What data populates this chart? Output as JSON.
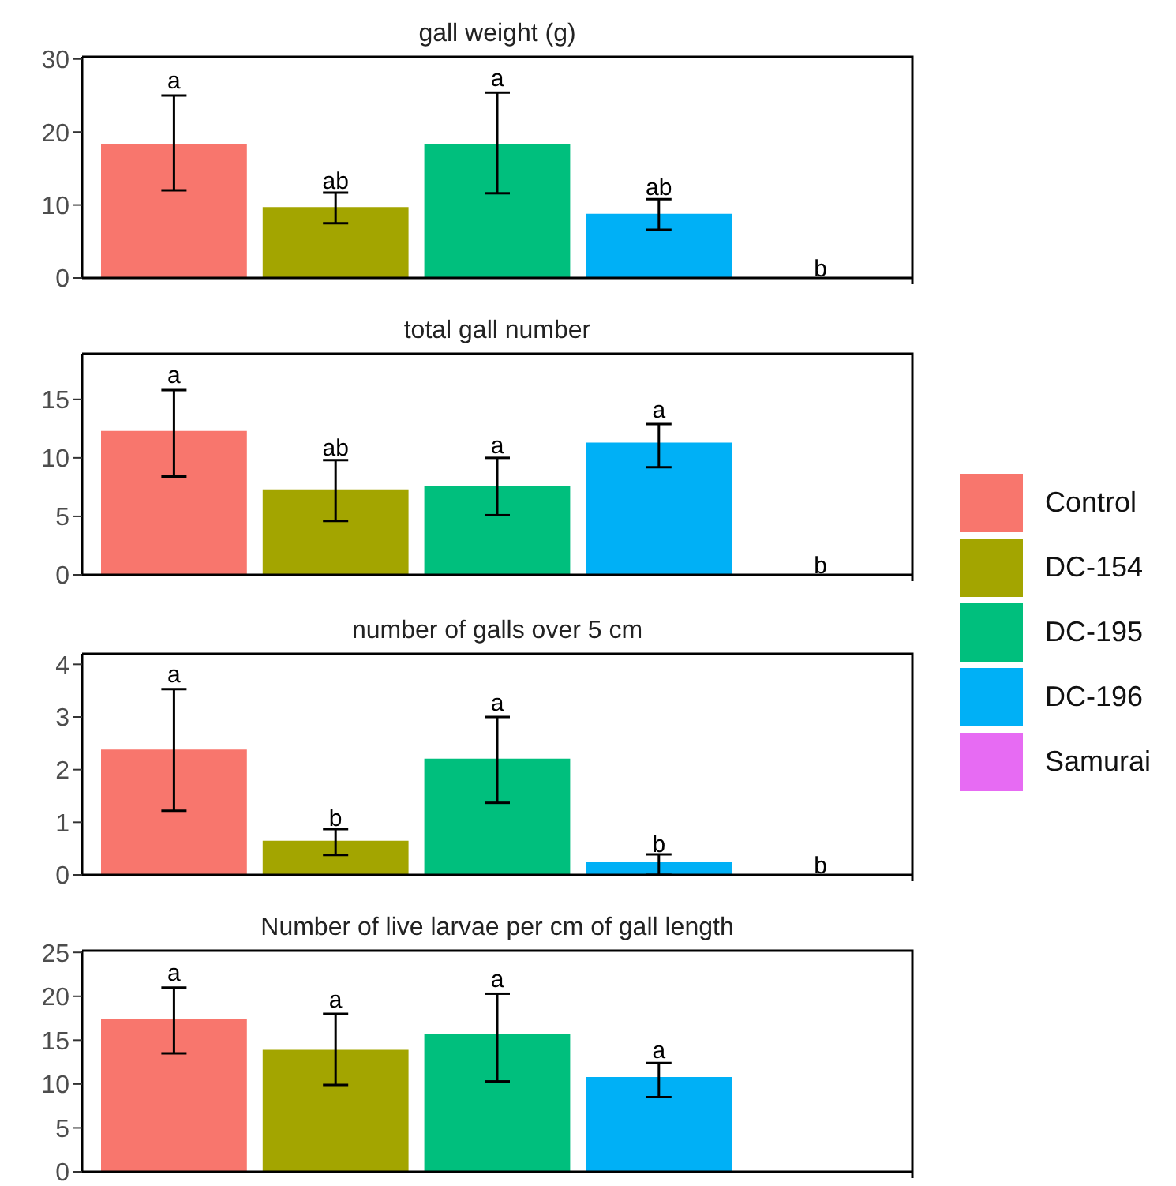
{
  "chart_data": [
    {
      "type": "bar",
      "title": "gall weight (g)",
      "categories": [
        null
      ],
      "ylim": [
        0,
        30.3
      ],
      "yticks": [
        0,
        10,
        20,
        30
      ],
      "grid": false,
      "legend": false,
      "series": [
        {
          "color": "#f8766d",
          "values": [
            18.4
          ],
          "errors": [
            [
              12.0,
              25.0
            ]
          ]
        },
        {
          "color": "#a3a500",
          "values": [
            9.7
          ],
          "errors": [
            [
              7.5,
              11.7
            ]
          ]
        },
        {
          "color": "#00bf7d",
          "values": [
            18.4
          ],
          "errors": [
            [
              11.6,
              25.4
            ]
          ]
        },
        {
          "color": "#00b0f6",
          "values": [
            8.8
          ],
          "errors": [
            [
              6.6,
              10.8
            ]
          ]
        },
        {
          "color": "#e76bf3",
          "values": [
            0
          ]
        }
      ],
      "annotations": [
        {
          "text": "a",
          "y": 25.0
        },
        {
          "text": "ab",
          "y": 11.7
        },
        {
          "text": "a",
          "y": 25.4
        },
        {
          "text": "ab",
          "y": 10.8
        },
        "b"
      ]
    },
    {
      "type": "bar",
      "title": "total gall number",
      "categories": [
        null
      ],
      "ylim": [
        0,
        18.9
      ],
      "yticks": [
        0,
        5,
        10,
        15
      ],
      "grid": false,
      "legend": "right",
      "series": [
        {
          "name": "Control",
          "color": "#f8766d",
          "values": [
            12.3
          ],
          "errors": [
            [
              8.4,
              15.8
            ]
          ]
        },
        {
          "name": "DC-154",
          "color": "#a3a500",
          "values": [
            7.3
          ],
          "errors": [
            [
              4.6,
              9.8
            ]
          ]
        },
        {
          "name": "DC-195",
          "color": "#00bf7d",
          "values": [
            7.6
          ],
          "errors": [
            [
              5.1,
              10.0
            ]
          ]
        },
        {
          "name": "DC-196",
          "color": "#00b0f6",
          "values": [
            11.3
          ],
          "errors": [
            [
              9.2,
              12.9
            ]
          ]
        },
        {
          "name": "Samurai",
          "color": "#e76bf3",
          "values": [
            0
          ]
        }
      ],
      "annotations": [
        {
          "text": "a",
          "y": 15.8
        },
        {
          "text": "ab",
          "y": 9.8
        },
        {
          "text": "a",
          "y": 10.0
        },
        {
          "text": "a",
          "y": 12.9
        },
        "b"
      ]
    },
    {
      "type": "bar",
      "title": "number of galls over 5 cm",
      "categories": [
        null
      ],
      "ylim": [
        0,
        4.2
      ],
      "yticks": [
        0,
        1,
        2,
        3,
        4
      ],
      "grid": false,
      "legend": false,
      "series": [
        {
          "color": "#f8766d",
          "values": [
            2.38
          ],
          "errors": [
            [
              1.22,
              3.53
            ]
          ]
        },
        {
          "color": "#a3a500",
          "values": [
            0.65
          ],
          "errors": [
            [
              0.38,
              0.87
            ]
          ]
        },
        {
          "color": "#00bf7d",
          "values": [
            2.21
          ],
          "errors": [
            [
              1.37,
              3.0
            ]
          ]
        },
        {
          "color": "#00b0f6",
          "values": [
            0.24
          ],
          "errors": [
            [
              0.0,
              0.39
            ]
          ]
        },
        {
          "color": "#e76bf3",
          "values": [
            0
          ]
        }
      ],
      "annotations": [
        {
          "text": "a",
          "y": 3.53
        },
        {
          "text": "b",
          "y": 0.87
        },
        {
          "text": "a",
          "y": 3.0
        },
        {
          "text": "b",
          "y": 0.39
        },
        "b"
      ]
    },
    {
      "type": "bar",
      "title": "Number of live larvae per cm of gall length",
      "categories": [
        null
      ],
      "ylim": [
        0,
        25.2
      ],
      "yticks": [
        0,
        5,
        10,
        15,
        20,
        25
      ],
      "grid": false,
      "legend": false,
      "series": [
        {
          "color": "#f8766d",
          "values": [
            17.4
          ],
          "errors": [
            [
              13.5,
              21.0
            ]
          ]
        },
        {
          "color": "#a3a500",
          "values": [
            13.9
          ],
          "errors": [
            [
              9.9,
              18.0
            ]
          ]
        },
        {
          "color": "#00bf7d",
          "values": [
            15.7
          ],
          "errors": [
            [
              10.3,
              20.3
            ]
          ]
        },
        {
          "color": "#00b0f6",
          "values": [
            10.8
          ],
          "errors": [
            [
              8.5,
              12.4
            ]
          ]
        },
        {
          "color": "#e76bf3",
          "values": [
            null
          ]
        }
      ],
      "annotations": [
        {
          "text": "a",
          "y": 21.0
        },
        {
          "text": "a",
          "y": 18.0
        },
        {
          "text": "a",
          "y": 20.3
        },
        {
          "text": "a",
          "y": 12.4
        }
      ]
    }
  ]
}
